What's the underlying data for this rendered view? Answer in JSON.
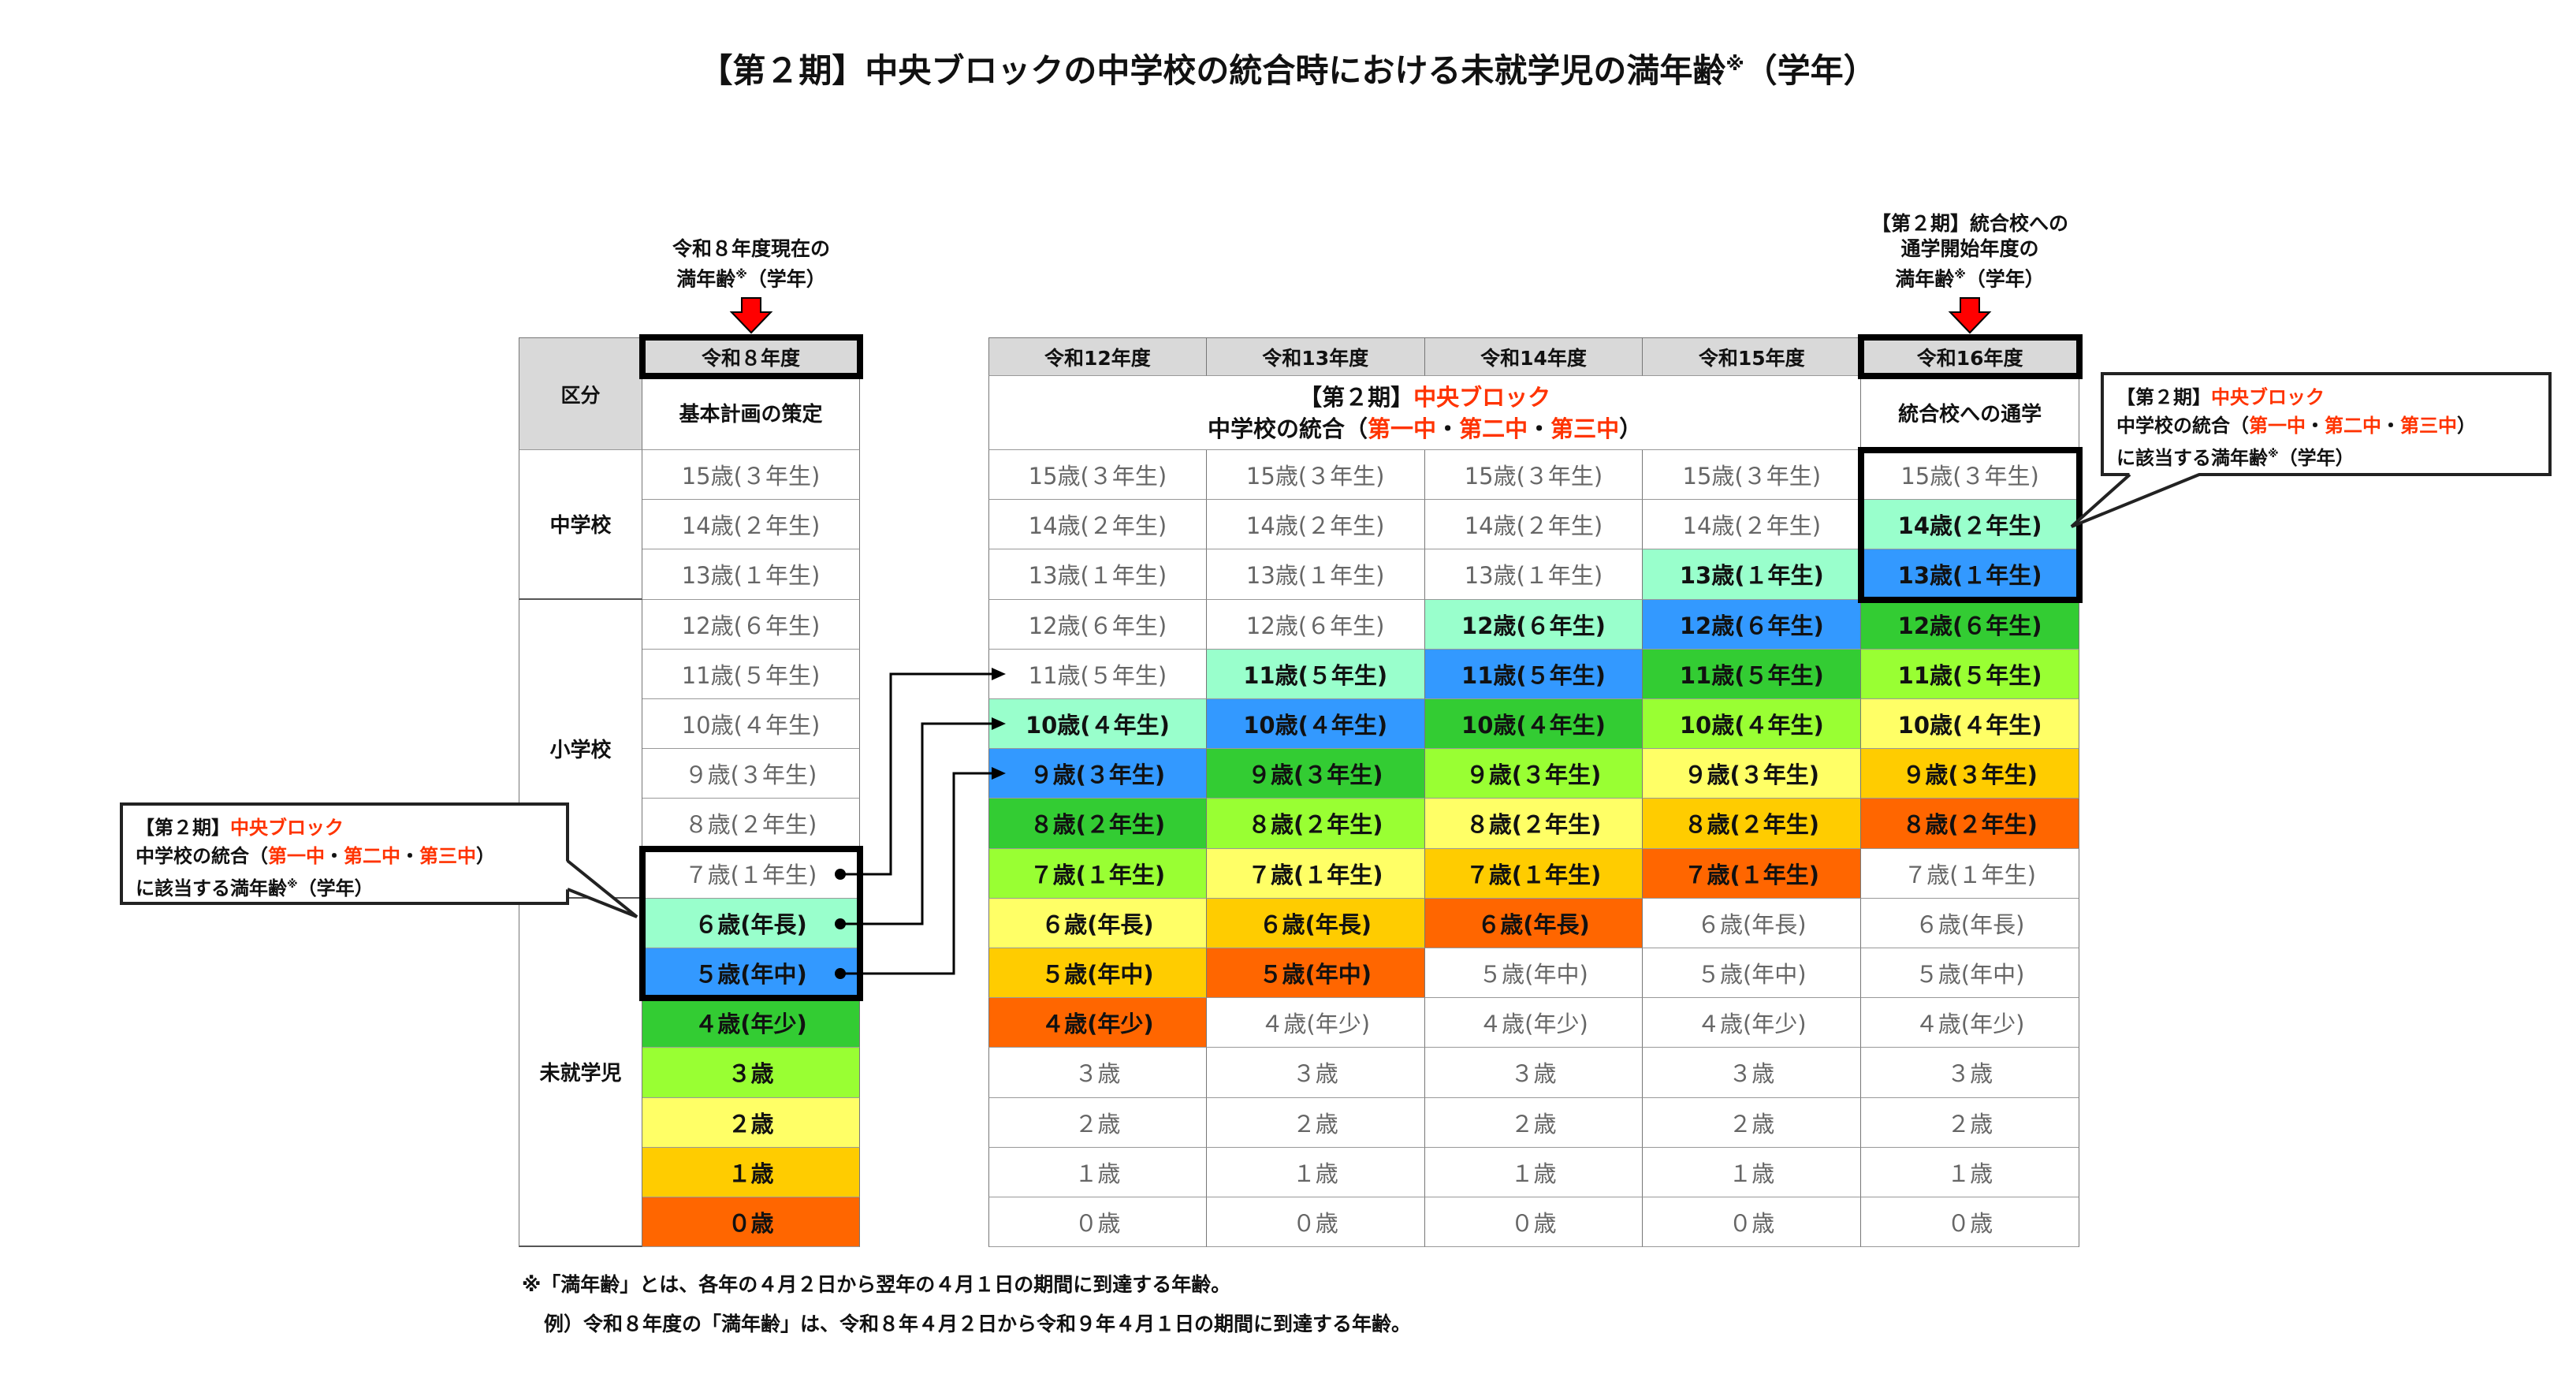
{
  "title": {
    "text": "【第２期】中央ブロックの中学校の統合時における未就学児の満年齢",
    "sup": "※",
    "suffix": "（学年）"
  },
  "left_label": {
    "line1": "令和８年度現在の",
    "line2": "満年齢",
    "sup": "※",
    "line2_suffix": "（学年）"
  },
  "right_label": {
    "line1": "【第２期】統合校への",
    "line2": "通学開始年度の",
    "line3": "満年齢",
    "sup": "※",
    "line3_suffix": "（学年）"
  },
  "palette": {
    "m": "#99ffcc",
    "b": "#3399ff",
    "g": "#33cc33",
    "l": "#99ff33",
    "y": "#ffff66",
    "a": "#ffcc00",
    "o": "#ff6600",
    "arrow": "#ff0000",
    "header": "#d9d9d9",
    "accent_text": "#ff3300"
  },
  "age_labels": [
    "15歳(３年生)",
    "14歳(２年生)",
    "13歳(１年生)",
    "12歳(６年生)",
    "11歳(５年生)",
    "10歳(４年生)",
    "９歳(３年生)",
    "８歳(２年生)",
    "７歳(１年生)",
    "６歳(年長)",
    "５歳(年中)",
    "４歳(年少)",
    "３歳",
    "２歳",
    "１歳",
    "０歳"
  ],
  "left_table": {
    "category_header": "区分",
    "year": "令和８年度",
    "plan": "基本計画の策定",
    "groups": [
      {
        "label": "中学校"
      },
      {
        "label": "小学校"
      },
      {
        "label": "未就学児"
      }
    ],
    "colors": [
      "",
      "",
      "",
      "",
      "",
      "",
      "",
      "",
      "",
      "m",
      "b",
      "g",
      "l",
      "y",
      "a",
      "o"
    ]
  },
  "right_table": {
    "merged_header": {
      "prefix": "【第２期】",
      "block": "中央ブロック",
      "line2_prefix": "中学校の統合（",
      "schools": [
        "第一中",
        "第二中",
        "第三中"
      ],
      "sep": "・",
      "suffix": "）"
    },
    "last_header": "統合校への通学",
    "columns": [
      {
        "year": "令和12年度",
        "colors": [
          "",
          "",
          "",
          "",
          "",
          "m",
          "b",
          "g",
          "l",
          "y",
          "a",
          "o",
          "",
          "",
          "",
          ""
        ]
      },
      {
        "year": "令和13年度",
        "colors": [
          "",
          "",
          "",
          "",
          "m",
          "b",
          "g",
          "l",
          "y",
          "a",
          "o",
          "",
          "",
          "",
          "",
          ""
        ]
      },
      {
        "year": "令和14年度",
        "colors": [
          "",
          "",
          "",
          "m",
          "b",
          "g",
          "l",
          "y",
          "a",
          "o",
          "",
          "",
          "",
          "",
          "",
          ""
        ]
      },
      {
        "year": "令和15年度",
        "colors": [
          "",
          "",
          "m",
          "b",
          "g",
          "l",
          "y",
          "a",
          "o",
          "",
          "",
          "",
          "",
          "",
          "",
          ""
        ]
      },
      {
        "year": "令和16年度",
        "colors": [
          "",
          "m",
          "b",
          "g",
          "l",
          "y",
          "a",
          "o",
          "",
          "",
          "",
          "",
          "",
          "",
          "",
          ""
        ]
      }
    ]
  },
  "callout": {
    "prefix": "【第２期】",
    "block": "中央ブロック",
    "line2_prefix": "中学校の統合（",
    "schools": [
      "第一中",
      "第二中",
      "第三中"
    ],
    "sep": "・",
    "suffix": "）",
    "line3": "に該当する満年齢",
    "sup": "※",
    "line3_suffix": "（学年）"
  },
  "footnotes": [
    "※「満年齢」とは、各年の４月２日から翌年の４月１日の期間に到達する年齢。",
    "例）令和８年度の「満年齢」は、令和８年４月２日から令和９年４月１日の期間に到達する年齢。"
  ]
}
